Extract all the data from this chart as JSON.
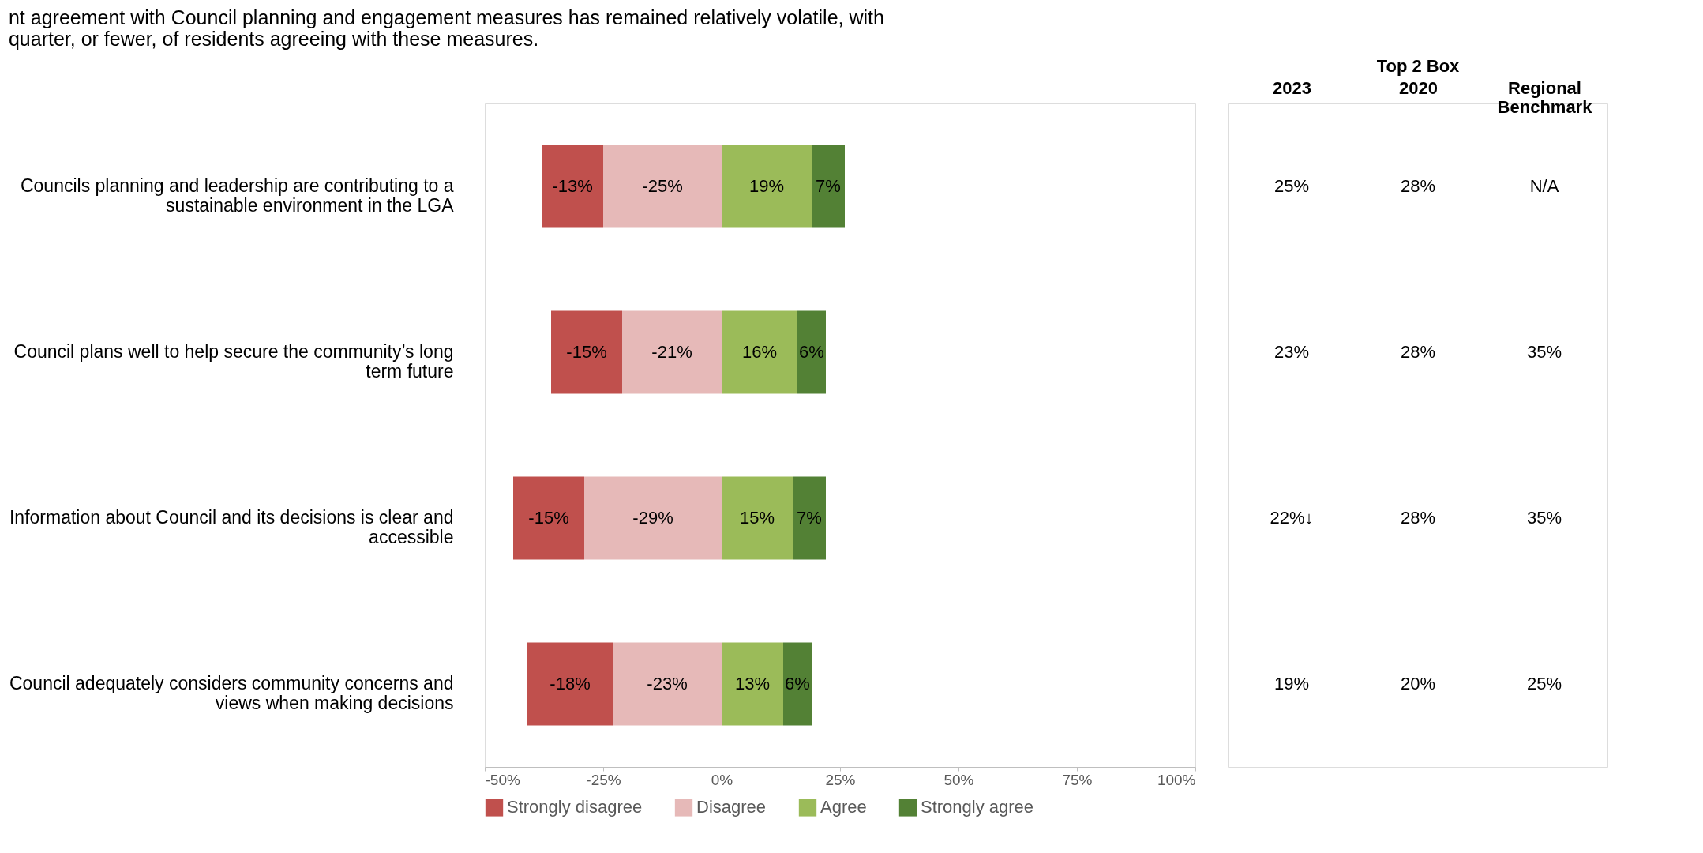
{
  "chart_data": [
    {
      "type": "bar",
      "orientation": "horizontal",
      "stacked": true,
      "annotations": [
        "nt agreement with Council planning and engagement measures has remained relatively volatile, with",
        "quarter, or fewer, of residents agreeing with these measures."
      ],
      "categories": [
        "Councils planning and leadership are contributing to a sustainable environment in the LGA",
        "Council plans well to help secure the community’s long term future",
        "Information about Council and its decisions is clear and accessible",
        "Council adequately considers community concerns and views when making decisions"
      ],
      "series": [
        {
          "name": "Disagree",
          "color": "#e6b9b8",
          "values": [
            -25,
            -21,
            -29,
            -23
          ],
          "value_labels": [
            "-25%",
            "-21%",
            "-29%",
            "-23%"
          ]
        },
        {
          "name": "Strongly disagree",
          "color": "#c0504d",
          "values": [
            -13,
            -15,
            -15,
            -18
          ],
          "value_labels": [
            "-13%",
            "-15%",
            "-15%",
            "-18%"
          ]
        },
        {
          "name": "Agree",
          "color": "#9bbb59",
          "values": [
            19,
            16,
            15,
            13
          ],
          "value_labels": [
            "19%",
            "16%",
            "15%",
            "13%"
          ]
        },
        {
          "name": "Strongly agree",
          "color": "#538135",
          "values": [
            7,
            6,
            7,
            6
          ],
          "value_labels": [
            "7%",
            "6%",
            "7%",
            "6%"
          ]
        }
      ],
      "xlim": [
        -50,
        100
      ],
      "xticks": [
        {
          "value": -50,
          "label": "-50%"
        },
        {
          "value": -25,
          "label": "-25%"
        },
        {
          "value": 0,
          "label": "0%"
        },
        {
          "value": 25,
          "label": "25%"
        },
        {
          "value": 50,
          "label": "50%"
        },
        {
          "value": 75,
          "label": "75%"
        },
        {
          "value": 100,
          "label": "100%"
        }
      ],
      "legend": "bottom",
      "grid": false
    },
    {
      "type": "other",
      "title": "Top 2 Box",
      "categories": [
        "2023",
        "2020",
        "Regional Benchmark"
      ],
      "series": [
        {
          "values": [
            25,
            28,
            null
          ],
          "value_labels": [
            "25%",
            "28%",
            "N/A"
          ]
        },
        {
          "values": [
            23,
            28,
            35
          ],
          "value_labels": [
            "23%",
            "28%",
            "35%"
          ]
        },
        {
          "values": [
            22,
            28,
            35
          ],
          "value_labels": [
            "22%↓",
            "28%",
            "35%"
          ]
        },
        {
          "values": [
            19,
            20,
            25
          ],
          "value_labels": [
            "19%",
            "20%",
            "25%"
          ]
        }
      ]
    }
  ]
}
